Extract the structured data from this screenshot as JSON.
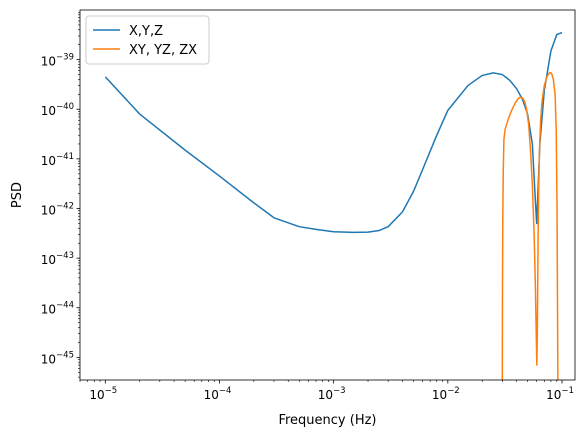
{
  "chart_data": {
    "type": "line",
    "title": "",
    "xlabel": "Frequency (Hz)",
    "ylabel": "PSD",
    "xscale": "log",
    "yscale": "log",
    "xlim": [
      6e-06,
      0.13
    ],
    "ylim": [
      3.5e-46,
      1e-38
    ],
    "grid": false,
    "legend_placement": "top-left",
    "xticks": [
      {
        "base": "10",
        "exp": "−5",
        "value": 1e-05
      },
      {
        "base": "10",
        "exp": "−4",
        "value": 0.0001
      },
      {
        "base": "10",
        "exp": "−3",
        "value": 0.001
      },
      {
        "base": "10",
        "exp": "−2",
        "value": 0.01
      },
      {
        "base": "10",
        "exp": "−1",
        "value": 0.1
      }
    ],
    "yticks": [
      {
        "base": "10",
        "exp": "−45",
        "value": 1e-45
      },
      {
        "base": "10",
        "exp": "−44",
        "value": 1e-44
      },
      {
        "base": "10",
        "exp": "−43",
        "value": 1e-43
      },
      {
        "base": "10",
        "exp": "−42",
        "value": 1e-42
      },
      {
        "base": "10",
        "exp": "−41",
        "value": 1e-41
      },
      {
        "base": "10",
        "exp": "−40",
        "value": 1e-40
      },
      {
        "base": "10",
        "exp": "−39",
        "value": 1e-39
      }
    ],
    "series": [
      {
        "name": "X,Y,Z",
        "color": "#1f77b4",
        "x": [
          1e-05,
          2e-05,
          5e-05,
          0.0001,
          0.0002,
          0.0003,
          0.0005,
          0.0007,
          0.001,
          0.0015,
          0.002,
          0.0025,
          0.003,
          0.004,
          0.005,
          0.006,
          0.008,
          0.01,
          0.015,
          0.02,
          0.025,
          0.03,
          0.035,
          0.04,
          0.045,
          0.05,
          0.055,
          0.058,
          0.06,
          0.0615,
          0.064,
          0.07,
          0.08,
          0.09,
          0.1
        ],
        "y": [
          4.5e-40,
          8e-41,
          1.5e-41,
          4.5e-42,
          1.3e-42,
          6.5e-43,
          4.3e-43,
          3.8e-43,
          3.4e-43,
          3.3e-43,
          3.35e-43,
          3.6e-43,
          4.3e-43,
          8.5e-43,
          2.2e-42,
          6e-42,
          3e-41,
          9.5e-41,
          3e-40,
          4.8e-40,
          5.4e-40,
          5e-40,
          3.8e-40,
          2.6e-40,
          1.6e-40,
          8e-41,
          2e-41,
          2e-42,
          5e-43,
          2e-42,
          2e-41,
          2.4e-40,
          1.5e-39,
          3.2e-39,
          3.5e-39
        ]
      },
      {
        "name": "XY, YZ, ZX",
        "color": "#ff7f0e",
        "x": [
          0.03,
          0.0301,
          0.0303,
          0.0306,
          0.031,
          0.0318,
          0.0328,
          0.034,
          0.0355,
          0.037,
          0.039,
          0.041,
          0.043,
          0.045,
          0.047,
          0.049,
          0.051,
          0.053,
          0.055,
          0.057,
          0.0585,
          0.0595,
          0.0602,
          0.0608,
          0.0613,
          0.0618,
          0.0625,
          0.0635,
          0.065,
          0.067,
          0.07,
          0.074,
          0.078,
          0.081,
          0.084,
          0.087,
          0.089,
          0.0905,
          0.0915,
          0.092
        ],
        "y": [
          3.5e-46,
          2e-44,
          6e-43,
          6e-42,
          2.5e-41,
          4e-41,
          5e-41,
          6.5e-41,
          8.5e-41,
          1.05e-40,
          1.35e-40,
          1.6e-40,
          1.75e-40,
          1.7e-40,
          1.45e-40,
          1e-40,
          5e-41,
          1.5e-41,
          3e-42,
          3e-43,
          2.5e-44,
          3e-45,
          7e-46,
          3e-45,
          3e-44,
          3e-43,
          2.5e-42,
          1.5e-41,
          6e-41,
          1.5e-40,
          3e-40,
          4.6e-40,
          5.5e-40,
          5.3e-40,
          4e-40,
          2e-40,
          4e-41,
          1e-42,
          5e-45,
          3.5e-46
        ]
      }
    ]
  }
}
